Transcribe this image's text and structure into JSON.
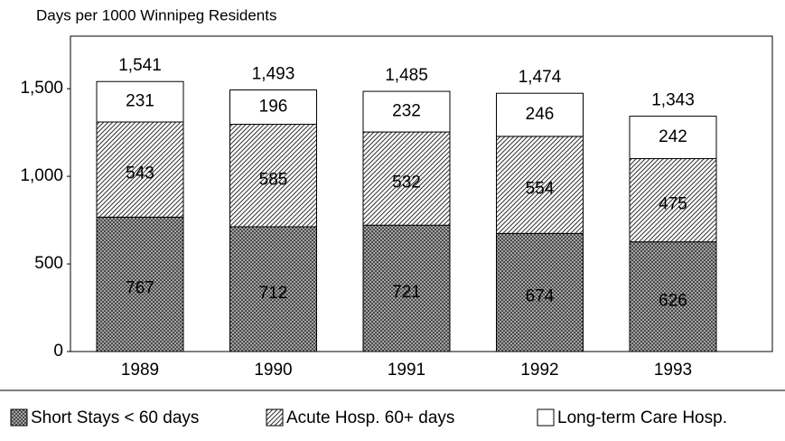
{
  "chart_data": {
    "type": "stacked_bar",
    "title": "Days per 1000 Winnipeg Residents",
    "categories": [
      "1989",
      "1990",
      "1991",
      "1992",
      "1993"
    ],
    "series": [
      {
        "name": "Short Stays < 60 days",
        "pattern": "crosshatch",
        "color": "#555555",
        "values": [
          767,
          712,
          721,
          674,
          626
        ]
      },
      {
        "name": "Acute Hosp. 60+ days",
        "pattern": "diagonal",
        "color": "#555555",
        "values": [
          543,
          585,
          532,
          554,
          475
        ]
      },
      {
        "name": "Long-term Care Hosp.",
        "pattern": "none",
        "color": "#ffffff",
        "values": [
          231,
          196,
          232,
          246,
          242
        ]
      }
    ],
    "totals": [
      1541,
      1493,
      1485,
      1474,
      1343
    ],
    "total_labels": [
      "1,541",
      "1,493",
      "1,485",
      "1,474",
      "1,343"
    ],
    "ylim": [
      0,
      1800
    ],
    "yticks": [
      0,
      500,
      {
        "value": 1000,
        "label": "1,000"
      },
      {
        "value": 1500,
        "label": "1,500"
      }
    ],
    "legend": "bottom"
  }
}
